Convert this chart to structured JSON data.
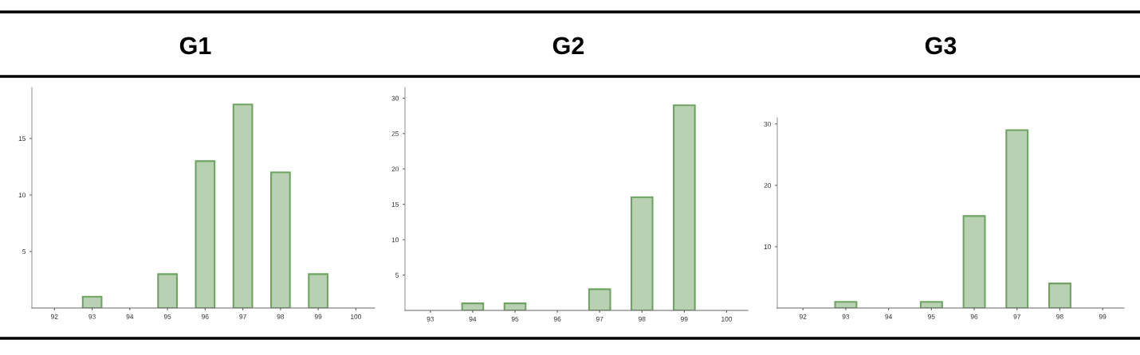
{
  "chart_data": [
    {
      "type": "bar",
      "title": "G1",
      "categories": [
        "92",
        "93",
        "94",
        "95",
        "96",
        "97",
        "98",
        "99",
        "100"
      ],
      "values": [
        0,
        1,
        0,
        3,
        13,
        18,
        12,
        3,
        0
      ],
      "color": "#b9d1b3",
      "ylim": [
        0,
        19.5
      ],
      "yticks": [
        5,
        10,
        15
      ],
      "grid": false
    },
    {
      "type": "bar",
      "title": "G2",
      "categories": [
        "93",
        "94",
        "95",
        "96",
        "97",
        "98",
        "99",
        "100"
      ],
      "values": [
        0,
        1,
        1,
        0,
        3,
        16,
        29,
        0
      ],
      "color": "#b9d1b3",
      "ylim": [
        0,
        31.5
      ],
      "yticks": [
        5,
        10,
        15,
        20,
        25,
        30
      ],
      "grid": false
    },
    {
      "type": "bar",
      "title": "G3",
      "categories": [
        "92",
        "93",
        "94",
        "95",
        "96",
        "97",
        "98",
        "99"
      ],
      "values": [
        0,
        1,
        0,
        1,
        15,
        29,
        4,
        0
      ],
      "color": "#b9d1b3",
      "ylim": [
        0,
        31
      ],
      "yticks": [
        10,
        20,
        30
      ],
      "grid": false
    }
  ]
}
